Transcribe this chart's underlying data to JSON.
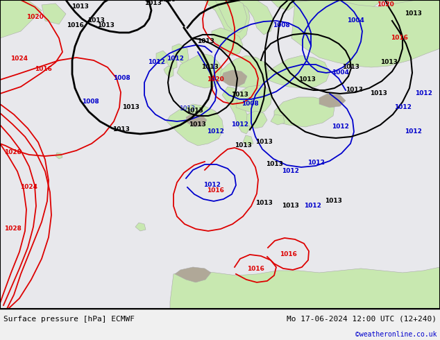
{
  "title_left": "Surface pressure [hPa] ECMWF",
  "title_right": "Mo 17-06-2024 12:00 UTC (12+240)",
  "credit": "©weatheronline.co.uk",
  "ocean_color": "#e8e8ec",
  "land_color": "#c8e8b0",
  "mountain_color": "#b0a898",
  "border_line_color": "#aaaaaa",
  "footer_bg": "#f0f0f0",
  "footer_text_color": "#000000",
  "credit_color": "#0000cc",
  "red_isobar": "#dd0000",
  "blue_isobar": "#0000cc",
  "black_isobar": "#000000",
  "fig_width": 6.34,
  "fig_height": 4.9,
  "dpi": 100
}
